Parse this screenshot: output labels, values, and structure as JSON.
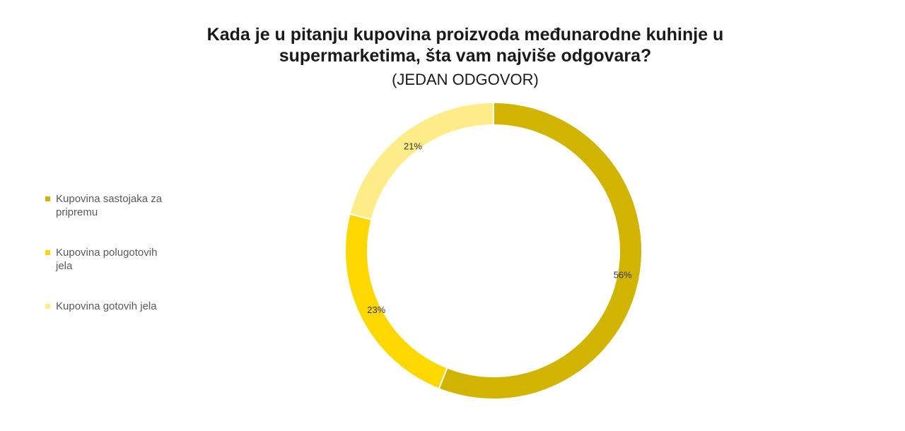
{
  "chart_data": {
    "type": "donut",
    "title": "Kada je u pitanju kupovina proizvoda međunarodne kuhinje u supermarketima, šta vam najviše odgovara?",
    "subtitle": "(JEDAN ODGOVOR)",
    "categories": [
      "Kupovina sastojaka za pripremu",
      "Kupovina polugotovih jela",
      "Kupovina gotovih jela"
    ],
    "values": [
      56,
      23,
      21
    ],
    "value_labels": [
      "56%",
      "23%",
      "21%"
    ],
    "colors": [
      "#d1b400",
      "#fcd800",
      "#fdec88"
    ],
    "legend": "left"
  }
}
